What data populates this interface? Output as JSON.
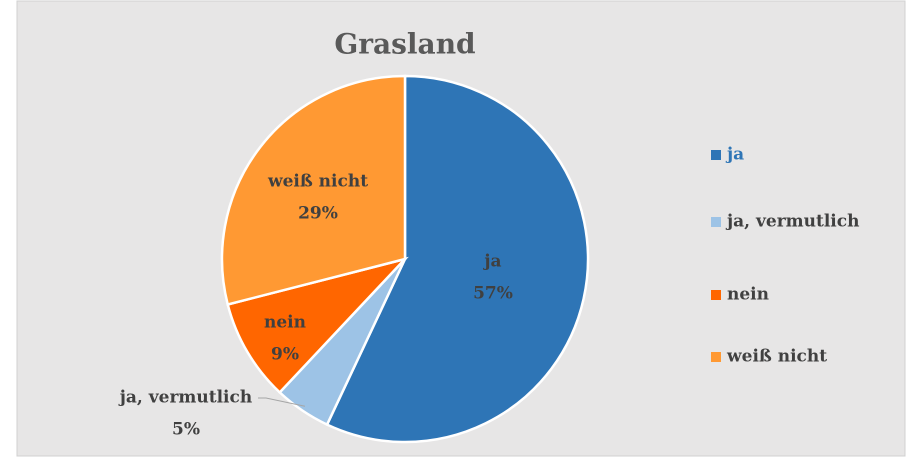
{
  "chart_data": {
    "type": "pie",
    "title": "Grasland",
    "categories": [
      "ja",
      "ja, vermutlich",
      "nein",
      "weiß nicht"
    ],
    "values": [
      57,
      5,
      9,
      29
    ],
    "value_labels": [
      "57%",
      "5%",
      "9%",
      "29%"
    ],
    "colors": [
      "#2e75b6",
      "#9dc3e6",
      "#ff6600",
      "#ff9933"
    ],
    "legend": "right"
  }
}
